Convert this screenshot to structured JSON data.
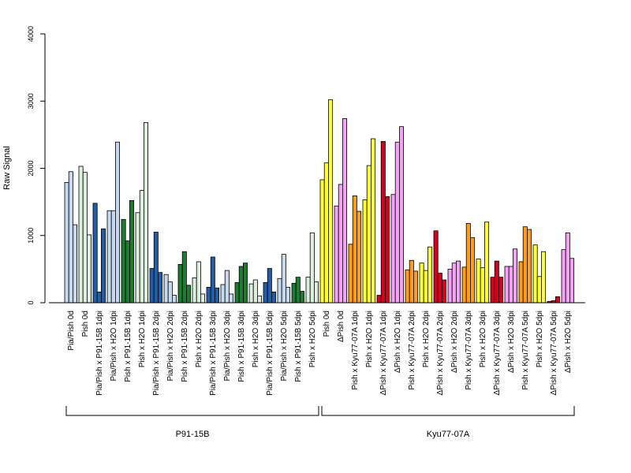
{
  "chart_data": {
    "type": "bar",
    "title": "",
    "xlabel": "",
    "ylabel": "Raw Signal",
    "ylim": [
      0,
      4000
    ],
    "yticks": [
      "0",
      "1000",
      "2000",
      "3000",
      "4000"
    ],
    "grid": false,
    "legend": "none",
    "categories": [
      "Pia/Pish 0d",
      "Pish 0d",
      "Pia/Pish x P91-15B 1dpi",
      "Pia/Pish x H2O 1dpi",
      "Pish x P91-15B 1dpi",
      "Pish x H2O 1dpi",
      "Pia/Pish x P91-15B 2dpi",
      "Pia/Pish x H2O 2dpi",
      "Pish x P91-15B 2dpi",
      "Pish x H2O 2dpi",
      "Pia/Pish x P91-15B 3dpi",
      "Pia/Pish x H2O 3dpi",
      "Pish x P91-15B 3dpi",
      "Pish x H2O 3dpi",
      "Pia/Pish x P91-15B 5dpi",
      "Pia/Pish x H2O 5dpi",
      "Pish x P91-15B 5dpi",
      "Pish x H2O 5dpi",
      "Pish 0d",
      "ΔPish 0d",
      "Pish x Kyu77-07A 1dpi",
      "Pish x H2O 1dpi",
      "ΔPish x Kyu77-07A 1dpi",
      "ΔPish x H2O 1dpi",
      "Pish x Kyu77-07A 2dpi",
      "Pish x H2O 2dpi",
      "ΔPish x Kyu77-07A 2dpi",
      "ΔPish x H2O 2dpi",
      "Pish x Kyu77-07A 3dpi",
      "Pish x H2O 3dpi",
      "ΔPish x Kyu77-07A 3dpi",
      "ΔPish x H2O 3dpi",
      "Pish x Kyu77-07A 5dpi",
      "Pish x H2O 5dpi",
      "ΔPish x Kyu77-07A 5dpi",
      "ΔPish x H2O 5dpi"
    ],
    "values": [
      [
        1790,
        1950,
        1160
      ],
      [
        2030,
        1940,
        1010
      ],
      [
        1480,
        160,
        1100
      ],
      [
        1370,
        1370,
        2390
      ],
      [
        1240,
        920,
        1520
      ],
      [
        1340,
        1670,
        2680
      ],
      [
        510,
        1050,
        450
      ],
      [
        420,
        310,
        110
      ],
      [
        570,
        760,
        260
      ],
      [
        370,
        610,
        130
      ],
      [
        230,
        680,
        220
      ],
      [
        270,
        480,
        130
      ],
      [
        300,
        540,
        590
      ],
      [
        280,
        340,
        100
      ],
      [
        300,
        510,
        160
      ],
      [
        360,
        720,
        230
      ],
      [
        290,
        380,
        170
      ],
      [
        380,
        1040,
        310
      ],
      [
        1830,
        2080,
        3020
      ],
      [
        1440,
        1760,
        2740
      ],
      [
        870,
        1590,
        1360
      ],
      [
        1530,
        2040,
        2440
      ],
      [
        110,
        2400,
        1580
      ],
      [
        1610,
        2390,
        2620
      ],
      [
        490,
        630,
        470
      ],
      [
        590,
        480,
        830
      ],
      [
        1070,
        440,
        340
      ],
      [
        500,
        590,
        620
      ],
      [
        530,
        1180,
        970
      ],
      [
        650,
        520,
        1200
      ],
      [
        380,
        620,
        380
      ],
      [
        540,
        540,
        800
      ],
      [
        610,
        1130,
        1090
      ],
      [
        860,
        390,
        760
      ],
      [
        20,
        30,
        90
      ],
      [
        790,
        1040,
        660
      ]
    ],
    "bar_colors": [
      "#c6d9ef",
      "#ddeedd",
      "#225ea8",
      "#c6d9ef",
      "#1f7a32",
      "#ddeedd",
      "#225ea8",
      "#c6d9ef",
      "#1f7a32",
      "#ddeedd",
      "#225ea8",
      "#c6d9ef",
      "#1f7a32",
      "#ddeedd",
      "#225ea8",
      "#c6d9ef",
      "#1f7a32",
      "#ddeedd",
      "#ffff33",
      "#f5a3f5",
      "#ff9c1a",
      "#ffff33",
      "#d7001e",
      "#f5a3f5",
      "#ff9c1a",
      "#ffff33",
      "#d7001e",
      "#f5a3f5",
      "#ff9c1a",
      "#ffff33",
      "#d7001e",
      "#f5a3f5",
      "#ff9c1a",
      "#ffff33",
      "#d7001e",
      "#f5a3f5"
    ],
    "groups": [
      {
        "label": "P91-15B",
        "from": 0,
        "to": 17
      },
      {
        "label": "Kyu77-07A",
        "from": 18,
        "to": 35
      }
    ]
  }
}
